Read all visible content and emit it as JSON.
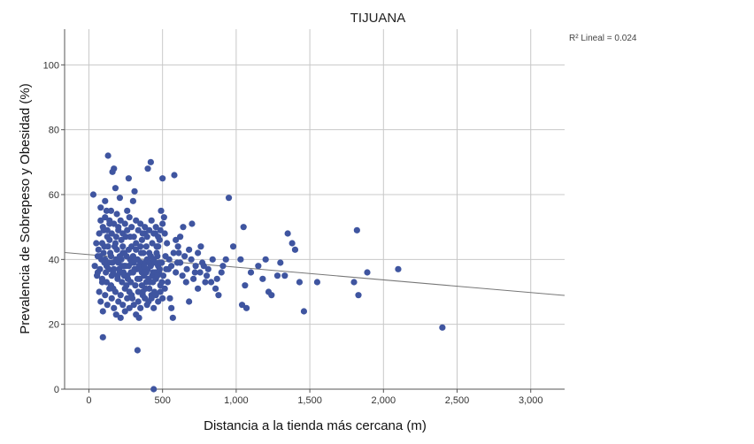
{
  "chart_data": {
    "type": "scatter",
    "title": "TIJUANA",
    "xlabel": "Distancia a la tienda más cercana (m)",
    "ylabel": "Prevalencia de Sobrepeso y Obesidad (%)",
    "annotation": "R² Lineal = 0.024",
    "xlim": [
      -165,
      3230
    ],
    "ylim": [
      0,
      111
    ],
    "xticks": [
      0,
      500,
      1000,
      1500,
      2000,
      2500,
      3000
    ],
    "xtick_labels": [
      "0",
      "500",
      "1,000",
      "1,500",
      "2,000",
      "2,500",
      "3,000"
    ],
    "yticks": [
      0,
      20,
      40,
      60,
      80,
      100
    ],
    "ytick_labels": [
      "0",
      "20",
      "40",
      "60",
      "80",
      "100"
    ],
    "grid": true,
    "point_color": "#3F55A0",
    "fit_line_color": "#777777",
    "fit_line": {
      "intercept": 41.5,
      "slope": -0.0039
    },
    "points": [
      [
        30,
        60
      ],
      [
        50,
        45
      ],
      [
        60,
        41
      ],
      [
        70,
        48
      ],
      [
        80,
        56
      ],
      [
        90,
        33
      ],
      [
        95,
        16
      ],
      [
        100,
        49
      ],
      [
        110,
        58
      ],
      [
        120,
        55
      ],
      [
        130,
        72
      ],
      [
        140,
        51
      ],
      [
        150,
        55
      ],
      [
        160,
        67
      ],
      [
        170,
        68
      ],
      [
        180,
        62
      ],
      [
        190,
        54
      ],
      [
        200,
        49
      ],
      [
        210,
        59
      ],
      [
        220,
        46
      ],
      [
        230,
        42
      ],
      [
        240,
        38
      ],
      [
        250,
        47
      ],
      [
        260,
        55
      ],
      [
        270,
        65
      ],
      [
        280,
        40
      ],
      [
        290,
        44
      ],
      [
        300,
        58
      ],
      [
        310,
        61
      ],
      [
        320,
        43
      ],
      [
        330,
        12
      ],
      [
        340,
        22
      ],
      [
        350,
        39
      ],
      [
        360,
        46
      ],
      [
        370,
        37
      ],
      [
        380,
        48
      ],
      [
        390,
        33
      ],
      [
        400,
        68
      ],
      [
        410,
        42
      ],
      [
        420,
        70
      ],
      [
        430,
        35
      ],
      [
        440,
        0
      ],
      [
        450,
        48
      ],
      [
        460,
        44
      ],
      [
        470,
        38
      ],
      [
        480,
        46
      ],
      [
        490,
        55
      ],
      [
        500,
        65
      ],
      [
        510,
        53
      ],
      [
        520,
        41
      ],
      [
        530,
        45
      ],
      [
        540,
        37
      ],
      [
        550,
        28
      ],
      [
        560,
        25
      ],
      [
        570,
        22
      ],
      [
        580,
        66
      ],
      [
        590,
        46
      ],
      [
        600,
        39
      ],
      [
        610,
        42
      ],
      [
        620,
        47
      ],
      [
        640,
        50
      ],
      [
        660,
        33
      ],
      [
        680,
        27
      ],
      [
        700,
        51
      ],
      [
        720,
        36
      ],
      [
        740,
        31
      ],
      [
        760,
        44
      ],
      [
        780,
        38
      ],
      [
        800,
        35
      ],
      [
        830,
        33
      ],
      [
        860,
        31
      ],
      [
        880,
        29
      ],
      [
        900,
        36
      ],
      [
        930,
        40
      ],
      [
        950,
        59
      ],
      [
        980,
        44
      ],
      [
        1030,
        40
      ],
      [
        1040,
        26
      ],
      [
        1050,
        50
      ],
      [
        1060,
        32
      ],
      [
        1070,
        25
      ],
      [
        1100,
        36
      ],
      [
        1150,
        38
      ],
      [
        1180,
        34
      ],
      [
        1200,
        40
      ],
      [
        1220,
        30
      ],
      [
        1240,
        29
      ],
      [
        1280,
        35
      ],
      [
        1300,
        39
      ],
      [
        1330,
        35
      ],
      [
        1350,
        48
      ],
      [
        1380,
        45
      ],
      [
        1400,
        43
      ],
      [
        1430,
        33
      ],
      [
        1460,
        24
      ],
      [
        1550,
        33
      ],
      [
        1800,
        33
      ],
      [
        1820,
        49
      ],
      [
        1830,
        29
      ],
      [
        1890,
        36
      ],
      [
        2100,
        37
      ],
      [
        2400,
        19
      ],
      [
        40,
        38
      ],
      [
        55,
        35
      ],
      [
        65,
        43
      ],
      [
        75,
        37
      ],
      [
        85,
        40
      ],
      [
        105,
        44
      ],
      [
        115,
        36
      ],
      [
        125,
        47
      ],
      [
        135,
        39
      ],
      [
        145,
        42
      ],
      [
        155,
        35
      ],
      [
        165,
        31
      ],
      [
        175,
        44
      ],
      [
        185,
        40
      ],
      [
        195,
        34
      ],
      [
        205,
        37
      ],
      [
        215,
        29
      ],
      [
        225,
        33
      ],
      [
        235,
        36
      ],
      [
        245,
        31
      ],
      [
        255,
        41
      ],
      [
        265,
        34
      ],
      [
        275,
        30
      ],
      [
        285,
        36
      ],
      [
        295,
        28
      ],
      [
        305,
        39
      ],
      [
        315,
        32
      ],
      [
        325,
        37
      ],
      [
        335,
        30
      ],
      [
        345,
        34
      ],
      [
        355,
        42
      ],
      [
        365,
        29
      ],
      [
        375,
        35
      ],
      [
        385,
        31
      ],
      [
        395,
        40
      ],
      [
        405,
        27
      ],
      [
        415,
        33
      ],
      [
        425,
        29
      ],
      [
        435,
        36
      ],
      [
        445,
        30
      ],
      [
        455,
        34
      ],
      [
        465,
        41
      ],
      [
        475,
        36
      ],
      [
        485,
        32
      ],
      [
        495,
        39
      ],
      [
        505,
        35
      ],
      [
        515,
        31
      ],
      [
        525,
        37
      ],
      [
        535,
        33
      ],
      [
        545,
        40
      ],
      [
        90,
        45
      ],
      [
        100,
        42
      ],
      [
        110,
        40
      ],
      [
        120,
        38
      ],
      [
        130,
        44
      ],
      [
        140,
        46
      ],
      [
        150,
        41
      ],
      [
        160,
        39
      ],
      [
        170,
        37
      ],
      [
        180,
        45
      ],
      [
        190,
        43
      ],
      [
        200,
        39
      ],
      [
        210,
        36
      ],
      [
        220,
        40
      ],
      [
        230,
        44
      ],
      [
        240,
        42
      ],
      [
        250,
        38
      ],
      [
        260,
        35
      ],
      [
        270,
        43
      ],
      [
        280,
        47
      ],
      [
        290,
        39
      ],
      [
        300,
        41
      ],
      [
        310,
        37
      ],
      [
        320,
        45
      ],
      [
        330,
        40
      ],
      [
        340,
        38
      ],
      [
        350,
        44
      ],
      [
        360,
        36
      ],
      [
        370,
        42
      ],
      [
        380,
        39
      ],
      [
        390,
        44
      ],
      [
        400,
        37
      ],
      [
        410,
        39
      ],
      [
        420,
        41
      ],
      [
        430,
        45
      ],
      [
        440,
        40
      ],
      [
        450,
        36
      ],
      [
        460,
        42
      ],
      [
        470,
        44
      ],
      [
        480,
        39
      ],
      [
        70,
        30
      ],
      [
        80,
        27
      ],
      [
        95,
        24
      ],
      [
        110,
        29
      ],
      [
        125,
        26
      ],
      [
        140,
        31
      ],
      [
        155,
        28
      ],
      [
        170,
        25
      ],
      [
        185,
        23
      ],
      [
        200,
        27
      ],
      [
        215,
        22
      ],
      [
        230,
        26
      ],
      [
        245,
        24
      ],
      [
        260,
        28
      ],
      [
        275,
        25
      ],
      [
        290,
        29
      ],
      [
        305,
        26
      ],
      [
        320,
        23
      ],
      [
        335,
        27
      ],
      [
        350,
        25
      ],
      [
        365,
        30
      ],
      [
        380,
        28
      ],
      [
        395,
        26
      ],
      [
        410,
        31
      ],
      [
        425,
        28
      ],
      [
        440,
        25
      ],
      [
        455,
        29
      ],
      [
        470,
        27
      ],
      [
        485,
        30
      ],
      [
        500,
        28
      ],
      [
        80,
        52
      ],
      [
        95,
        50
      ],
      [
        110,
        53
      ],
      [
        125,
        49
      ],
      [
        140,
        52
      ],
      [
        155,
        48
      ],
      [
        170,
        51
      ],
      [
        185,
        47
      ],
      [
        200,
        50
      ],
      [
        215,
        52
      ],
      [
        230,
        48
      ],
      [
        245,
        51
      ],
      [
        260,
        49
      ],
      [
        275,
        53
      ],
      [
        290,
        50
      ],
      [
        305,
        47
      ],
      [
        320,
        52
      ],
      [
        335,
        49
      ],
      [
        350,
        51
      ],
      [
        365,
        48
      ],
      [
        380,
        50
      ],
      [
        395,
        47
      ],
      [
        410,
        49
      ],
      [
        425,
        52
      ],
      [
        440,
        48
      ],
      [
        455,
        50
      ],
      [
        470,
        47
      ],
      [
        485,
        49
      ],
      [
        500,
        51
      ],
      [
        515,
        48
      ],
      [
        560,
        38
      ],
      [
        575,
        42
      ],
      [
        590,
        36
      ],
      [
        605,
        44
      ],
      [
        620,
        39
      ],
      [
        635,
        35
      ],
      [
        650,
        41
      ],
      [
        665,
        37
      ],
      [
        680,
        43
      ],
      [
        695,
        40
      ],
      [
        710,
        34
      ],
      [
        725,
        38
      ],
      [
        740,
        42
      ],
      [
        755,
        36
      ],
      [
        770,
        39
      ],
      [
        790,
        33
      ],
      [
        810,
        37
      ],
      [
        840,
        40
      ],
      [
        870,
        34
      ],
      [
        910,
        38
      ],
      [
        60,
        36
      ],
      [
        75,
        41
      ],
      [
        90,
        34
      ],
      [
        105,
        39
      ],
      [
        120,
        33
      ],
      [
        135,
        37
      ],
      [
        150,
        32
      ],
      [
        165,
        36
      ],
      [
        180,
        30
      ],
      [
        195,
        35
      ],
      [
        210,
        41
      ],
      [
        225,
        38
      ],
      [
        240,
        35
      ],
      [
        255,
        32
      ],
      [
        270,
        38
      ],
      [
        285,
        33
      ],
      [
        300,
        36
      ],
      [
        315,
        40
      ],
      [
        330,
        34
      ],
      [
        345,
        37
      ],
      [
        360,
        32
      ],
      [
        375,
        38
      ],
      [
        390,
        36
      ],
      [
        405,
        34
      ],
      [
        420,
        38
      ],
      [
        435,
        33
      ],
      [
        450,
        39
      ],
      [
        465,
        35
      ],
      [
        480,
        37
      ],
      [
        495,
        33
      ]
    ]
  }
}
